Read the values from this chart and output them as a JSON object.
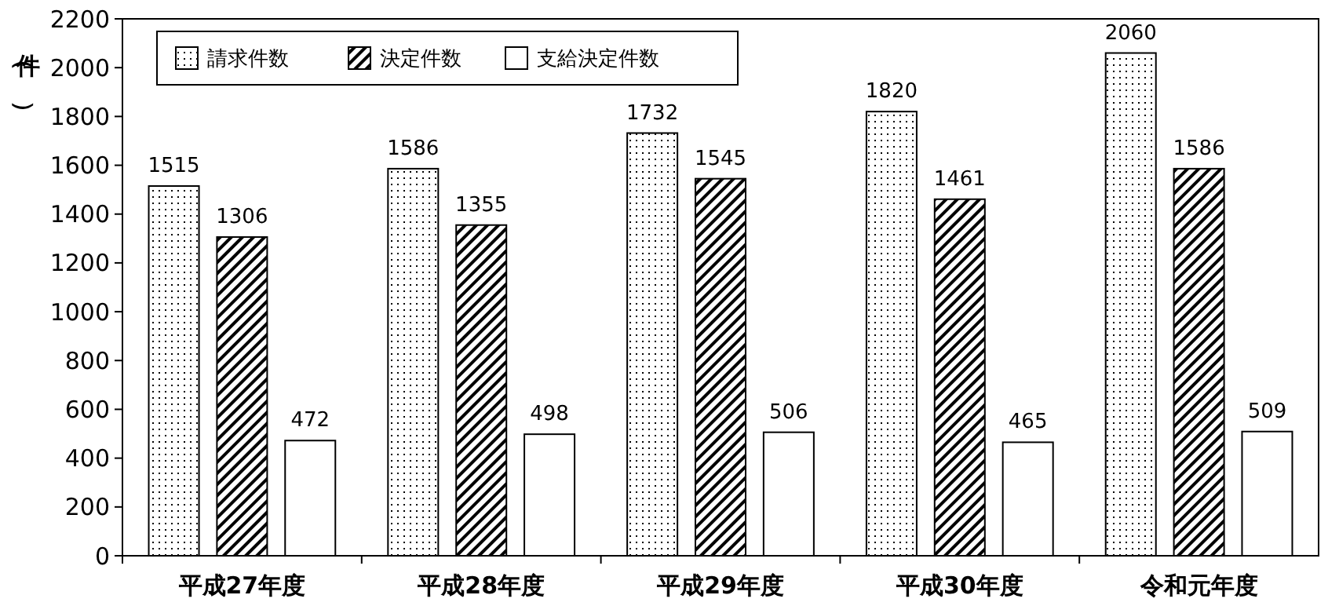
{
  "chart_data": {
    "type": "bar",
    "ylabel": "（件）",
    "categories": [
      "平成27年度",
      "平成28年度",
      "平成29年度",
      "平成30年度",
      "令和元年度"
    ],
    "series": [
      {
        "name": "請求件数",
        "color": "#000000",
        "values": [
          1515,
          1586,
          1732,
          1820,
          2060
        ]
      },
      {
        "name": "決定件数",
        "color": "#000000",
        "values": [
          1306,
          1355,
          1545,
          1461,
          1586
        ]
      },
      {
        "name": "支給決定件数",
        "color": "#ffffff",
        "values": [
          472,
          498,
          506,
          465,
          509
        ]
      }
    ],
    "ylim": [
      0,
      2200
    ],
    "yticks": [
      0,
      200,
      400,
      600,
      800,
      1000,
      1200,
      1400,
      1600,
      1800,
      2000,
      2200
    ],
    "grid": false,
    "legend": "top left",
    "data_labels": true
  }
}
